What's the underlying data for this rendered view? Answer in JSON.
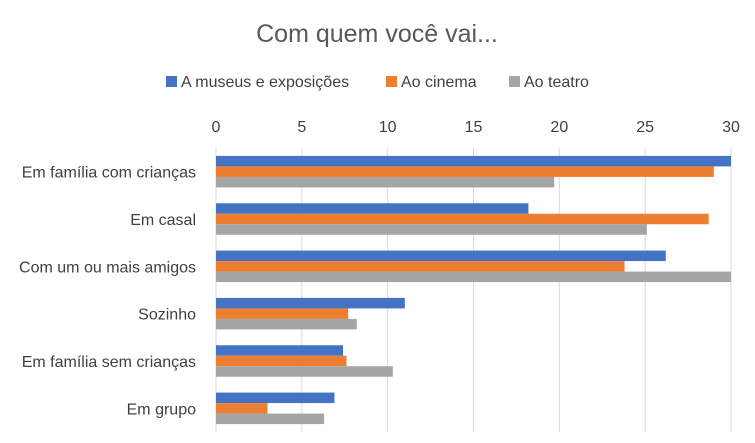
{
  "chart_data": {
    "type": "bar",
    "orientation": "horizontal",
    "title": "Com quem você vai...",
    "xlabel": "",
    "ylabel": "",
    "xlim": [
      0,
      30
    ],
    "x_ticks": [
      0,
      5,
      10,
      15,
      20,
      25,
      30
    ],
    "x_axis_position": "top",
    "grid": true,
    "legend_position": "top",
    "categories": [
      "Em família com crianças",
      "Em casal",
      "Com um ou mais amigos",
      "Sozinho",
      "Em família sem crianças",
      "Em grupo"
    ],
    "series": [
      {
        "name": "A museus e exposições",
        "color": "#4472c4",
        "values": [
          30,
          18.2,
          26.2,
          11,
          7.4,
          6.9
        ]
      },
      {
        "name": "Ao cinema",
        "color": "#ed7d31",
        "values": [
          29,
          28.7,
          23.8,
          7.7,
          7.6,
          3
        ]
      },
      {
        "name": "Ao teatro",
        "color": "#a5a5a5",
        "values": [
          19.7,
          25.1,
          30,
          8.2,
          10.3,
          6.3
        ]
      }
    ]
  }
}
